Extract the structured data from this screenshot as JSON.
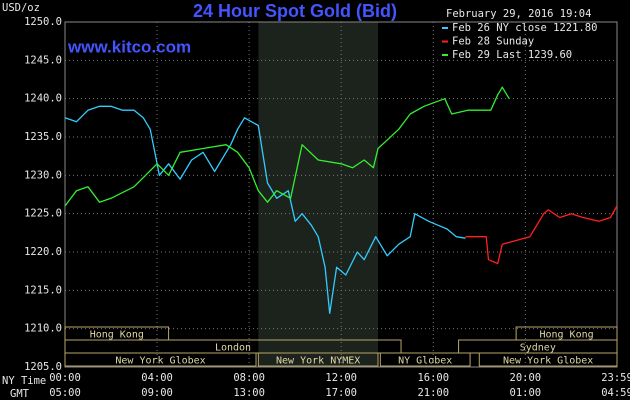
{
  "chart_data": {
    "type": "line",
    "title": "24 Hour Spot Gold (Bid)",
    "watermark": "www.kitco.com",
    "timestamp": "February 29, 2016 19:04",
    "y_label": "USD/oz",
    "x_row_labels": [
      "NY Time",
      "GMT"
    ],
    "xlim": [
      0,
      23.9833
    ],
    "ylim": [
      1205,
      1250
    ],
    "grid": true,
    "yticks": [
      {
        "value": 1205,
        "label": "1205.0"
      },
      {
        "value": 1210,
        "label": "1210.0"
      },
      {
        "value": 1215,
        "label": "1215.0"
      },
      {
        "value": 1220,
        "label": "1220.0"
      },
      {
        "value": 1225,
        "label": "1225.0"
      },
      {
        "value": 1230,
        "label": "1230.0"
      },
      {
        "value": 1235,
        "label": "1235.0"
      },
      {
        "value": 1240,
        "label": "1240.0"
      },
      {
        "value": 1245,
        "label": "1245.0"
      },
      {
        "value": 1250,
        "label": "1250.0"
      }
    ],
    "xticks": [
      {
        "value": 0,
        "label": "00:00"
      },
      {
        "value": 4,
        "label": "04:00"
      },
      {
        "value": 8,
        "label": "08:00"
      },
      {
        "value": 12,
        "label": "12:00"
      },
      {
        "value": 16,
        "label": "16:00"
      },
      {
        "value": 20,
        "label": "20:00"
      },
      {
        "value": 23.9833,
        "label": "23:59"
      }
    ],
    "gmt_ticks": [
      {
        "value": 0,
        "label": "05:00"
      },
      {
        "value": 4,
        "label": "09:00"
      },
      {
        "value": 8,
        "label": "13:00"
      },
      {
        "value": 12,
        "label": "17:00"
      },
      {
        "value": 16,
        "label": "21:00"
      },
      {
        "value": 20,
        "label": "01:00"
      },
      {
        "value": 23.9833,
        "label": "04:59"
      }
    ],
    "session_rows": [
      [
        {
          "label": "Hong Kong",
          "start": 0,
          "end": 4.5
        },
        {
          "label": "Hong Kong",
          "start": 19.6,
          "end": 23.9833
        }
      ],
      [
        {
          "label": "London",
          "start": 0,
          "end": 14.6
        },
        {
          "label": "Sydney",
          "start": 17.1,
          "end": 23.9833
        }
      ],
      [
        {
          "label": "New York Globex",
          "start": 0,
          "end": 8.3
        },
        {
          "label": "New York NYMEX",
          "start": 8.4,
          "end": 13.6,
          "shaded": true
        },
        {
          "label": "NY Globex",
          "start": 13.7,
          "end": 17.6
        },
        {
          "label": "New York Globex",
          "start": 18,
          "end": 23.9833
        }
      ]
    ],
    "series": [
      {
        "name": "Feb 26 NY close 1221.80",
        "color": "#33ccff",
        "x": [
          0,
          0.5,
          1,
          1.5,
          2,
          2.5,
          3,
          3.4,
          3.7,
          4.1,
          4.5,
          5,
          5.5,
          6,
          6.5,
          7.2,
          7.5,
          7.8,
          8.1,
          8.4,
          8.8,
          9.2,
          9.7,
          10,
          10.3,
          10.7,
          11,
          11.3,
          11.5,
          11.8,
          12.2,
          12.7,
          13,
          13.5,
          14,
          14.5,
          15,
          15.2,
          15.8,
          16.2,
          16.6,
          17,
          17.4
        ],
        "values": [
          1237.5,
          1237,
          1238.5,
          1239,
          1239,
          1238.5,
          1238.5,
          1237.5,
          1236,
          1230,
          1231.5,
          1229.5,
          1232,
          1233,
          1230.5,
          1234,
          1236,
          1237.5,
          1237,
          1236.5,
          1229,
          1227,
          1228,
          1224,
          1225,
          1223.5,
          1222,
          1218,
          1212,
          1218,
          1217,
          1220,
          1219,
          1222,
          1219.5,
          1221,
          1222,
          1225,
          1224,
          1223.5,
          1223,
          1222,
          1221.8
        ]
      },
      {
        "name": "Feb 28 Sunday",
        "color": "#ff2020",
        "x": [
          17.4,
          18.3,
          18.4,
          18.8,
          19,
          19.6,
          20.2,
          20.8,
          21,
          21.5,
          22,
          22.5,
          23.2,
          23.7,
          23.98
        ],
        "values": [
          1222,
          1222,
          1219,
          1218.5,
          1221,
          1221.5,
          1222,
          1225,
          1225.5,
          1224.5,
          1225,
          1224.5,
          1224,
          1224.5,
          1226
        ]
      },
      {
        "name": "Feb 29 Last 1239.60",
        "color": "#33ee33",
        "x": [
          0,
          0.5,
          1,
          1.5,
          2,
          3,
          3.5,
          4,
          4.5,
          5,
          6,
          7,
          7.5,
          8,
          8.4,
          8.8,
          9.2,
          9.8,
          10.3,
          11,
          12,
          12.5,
          13,
          13.4,
          13.6,
          14.5,
          15,
          15.6,
          16.5,
          16.8,
          17.5,
          18.5,
          18.8,
          19,
          19.3
        ],
        "values": [
          1226,
          1228,
          1228.5,
          1226.5,
          1227,
          1228.5,
          1230,
          1231.5,
          1230,
          1233,
          1233.5,
          1234,
          1233,
          1231,
          1228,
          1226.5,
          1228,
          1227,
          1234,
          1232,
          1231.5,
          1231,
          1232,
          1231,
          1233.5,
          1236,
          1238,
          1239,
          1240,
          1238,
          1238.5,
          1238.5,
          1240.5,
          1241.5,
          1240
        ]
      }
    ]
  }
}
